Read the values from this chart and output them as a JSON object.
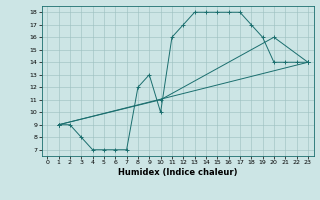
{
  "xlabel": "Humidex (Indice chaleur)",
  "xlim": [
    -0.5,
    23.5
  ],
  "ylim": [
    6.5,
    18.5
  ],
  "xticks": [
    0,
    1,
    2,
    3,
    4,
    5,
    6,
    7,
    8,
    9,
    10,
    11,
    12,
    13,
    14,
    15,
    16,
    17,
    18,
    19,
    20,
    21,
    22,
    23
  ],
  "yticks": [
    7,
    8,
    9,
    10,
    11,
    12,
    13,
    14,
    15,
    16,
    17,
    18
  ],
  "bg_color": "#cce5e5",
  "line_color": "#1a6e6e",
  "line1_x": [
    1,
    2,
    3,
    4,
    5,
    6,
    7,
    8,
    9,
    10,
    11,
    12,
    13,
    14,
    15,
    16,
    17,
    18,
    19,
    20,
    21,
    22,
    23
  ],
  "line1_y": [
    9,
    9,
    8,
    7,
    7,
    7,
    7,
    12,
    13,
    10,
    16,
    17,
    18,
    18,
    18,
    18,
    18,
    17,
    16,
    14,
    14,
    14,
    14
  ],
  "line2_x": [
    1,
    23
  ],
  "line2_y": [
    9,
    14
  ],
  "line3_x": [
    1,
    10,
    20,
    23
  ],
  "line3_y": [
    9,
    11,
    16,
    14
  ]
}
